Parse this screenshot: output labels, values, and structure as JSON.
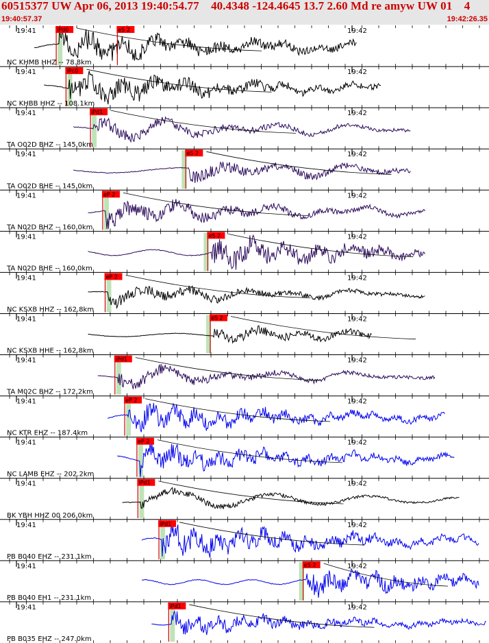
{
  "header": {
    "title": "60515377 UW Apr 06, 2013 19:40:54.77    40.4348 -124.4645 13.7 2.60 Md re amyw UW 01    4",
    "start_time": "19:40:57.37",
    "end_time": "19:42:26.35"
  },
  "colors": {
    "header_bg": "#e6e6e6",
    "title_text": "#cc0000",
    "pick_box": "#ff0000",
    "pick_window": "#b8e0b0",
    "trace_black": "#000000",
    "trace_purple": "#2a0a5a",
    "trace_blue": "#0000ee",
    "pick_line": "#cc0000",
    "travel_curve": "#000000"
  },
  "chart_data": {
    "type": "line",
    "title": "60515377 UW Apr 06, 2013 19:40:54.77    40.4348 -124.4645 13.7 2.60 Md re amyw UW 01    4",
    "x_range": [
      "19:40:57.37",
      "19:42:26.35"
    ],
    "tick_labels": [
      "19:41",
      "19:42"
    ],
    "grid": false,
    "channels": [
      {
        "label": "NC KHMB HHZ -- 78.8km",
        "color": "black",
        "onset": 0.14,
        "end": 0.73,
        "amp": 0.85,
        "freq": 1.1,
        "picks": [
          "iPd0",
          "eS 2"
        ],
        "pick_pos": [
          0.115,
          0.24
        ]
      },
      {
        "label": "NC KHBB HHZ -- 108.1km",
        "color": "black",
        "onset": 0.16,
        "end": 0.78,
        "amp": 0.8,
        "freq": 1.1,
        "picks": [
          "iPc0"
        ],
        "pick_pos": [
          0.135
        ]
      },
      {
        "label": "TA O02D BHZ -- 145.0km",
        "color": "purple",
        "onset": 0.22,
        "end": 0.84,
        "amp": 0.8,
        "freq": 0.6,
        "picks": [
          "iPd1"
        ],
        "pick_pos": [
          0.185
        ]
      },
      {
        "label": "TA O02D BHE -- 145.0km",
        "color": "purple",
        "onset": 0.22,
        "end": 0.84,
        "amp": 0.75,
        "freq": 0.6,
        "picks": [
          "eS 2"
        ],
        "pick_pos": [
          0.38
        ]
      },
      {
        "label": "TA N02D BHZ -- 160.0km",
        "color": "purple",
        "onset": 0.25,
        "end": 0.87,
        "amp": 0.8,
        "freq": 0.75,
        "picks": [
          "eP 2"
        ],
        "pick_pos": [
          0.21
        ]
      },
      {
        "label": "TA N02D BHE -- 160.0km",
        "color": "purple",
        "onset": 0.25,
        "end": 0.87,
        "amp": 0.85,
        "freq": 1.1,
        "picks": [
          "eS 2"
        ],
        "pick_pos": [
          0.425
        ]
      },
      {
        "label": "NC KSXB HHZ -- 162.8km",
        "color": "black",
        "onset": 0.25,
        "end": 0.87,
        "amp": 0.65,
        "freq": 0.7,
        "picks": [
          "eP 2"
        ],
        "pick_pos": [
          0.215
        ]
      },
      {
        "label": "NC KSXB HHE -- 162.8km",
        "color": "black",
        "onset": 0.25,
        "end": 0.76,
        "amp": 0.5,
        "freq": 0.8,
        "picks": [
          "eS 2"
        ],
        "pick_pos": [
          0.43
        ]
      },
      {
        "label": "TA M02C BHZ -- 172.2km",
        "color": "purple",
        "onset": 0.27,
        "end": 0.89,
        "amp": 0.7,
        "freq": 0.6,
        "picks": [
          "iPd1"
        ],
        "pick_pos": [
          0.235
        ]
      },
      {
        "label": "NC KTR EHZ -- 187.4km",
        "color": "blue",
        "onset": 0.29,
        "end": 0.91,
        "amp": 0.75,
        "freq": 1.6,
        "picks": [
          "eP 2"
        ],
        "pick_pos": [
          0.255
        ]
      },
      {
        "label": "NC LAMB EHZ -- 202.2km",
        "color": "blue",
        "onset": 0.31,
        "end": 0.93,
        "amp": 0.75,
        "freq": 1.6,
        "picks": [
          "eP 2"
        ],
        "pick_pos": [
          0.28
        ]
      },
      {
        "label": "BK YBH HHZ 00 206.0km",
        "color": "black",
        "onset": 0.32,
        "end": 0.94,
        "amp": 0.8,
        "freq": 0.35,
        "picks": [
          "iPd1"
        ],
        "pick_pos": [
          0.282
        ]
      },
      {
        "label": "PB B040 EHZ -- 231.1km",
        "color": "blue",
        "onset": 0.36,
        "end": 0.98,
        "amp": 0.85,
        "freq": 1.6,
        "picks": [
          "iPd1"
        ],
        "pick_pos": [
          0.325
        ]
      },
      {
        "label": "PB B040 EH1 -- 231.1km",
        "color": "blue",
        "onset": 0.36,
        "end": 0.98,
        "amp": 0.7,
        "freq": 1.6,
        "picks": [
          "eS 2"
        ],
        "pick_pos": [
          0.62
        ]
      },
      {
        "label": "PB B035 EHZ -- 247.0km",
        "color": "blue",
        "onset": 0.38,
        "end": 1.0,
        "amp": 0.55,
        "freq": 1.6,
        "picks": [
          "iPd1"
        ],
        "pick_pos": [
          0.345
        ]
      }
    ]
  }
}
